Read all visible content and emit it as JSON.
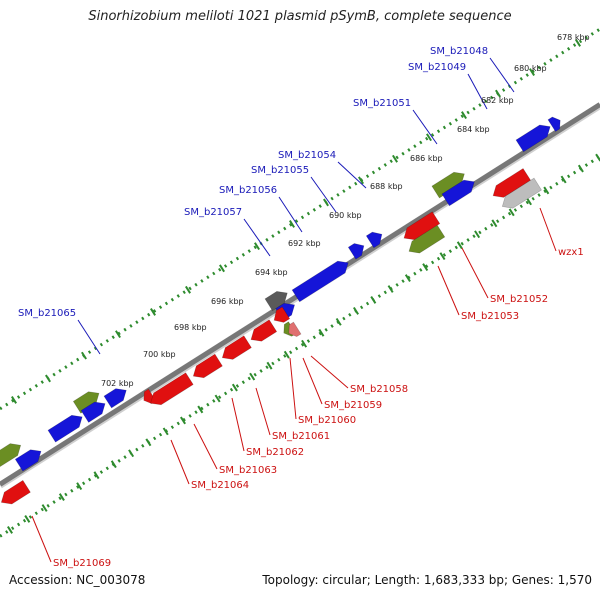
{
  "title": "Sinorhizobium meliloti 1021 plasmid pSymB, complete sequence",
  "footer": {
    "accession": "Accession: NC_003078",
    "topology": "Topology: circular; Length: 1,683,333 bp; Genes: 1,570"
  },
  "colors": {
    "axis": "#777777",
    "forward_gene": "#1515d8",
    "forward_rna": "#6b8e23",
    "reverse_gene": "#e01010",
    "reverse_pseudo": "#bdbdbd",
    "other_gene": "#5a5a5a",
    "scale_dots": "#2e8b2e",
    "label_blue": "#1a1ab8",
    "label_red": "#cc1111"
  },
  "scale_ticks": [
    "678 kbp",
    "680 kbp",
    "682 kbp",
    "684 kbp",
    "686 kbp",
    "688 kbp",
    "690 kbp",
    "692 kbp",
    "694 kbp",
    "696 kbp",
    "698 kbp",
    "700 kbp",
    "702 kbp"
  ],
  "forward_labels": [
    "SM_b21048",
    "SM_b21049",
    "SM_b21051",
    "SM_b21054",
    "SM_b21055",
    "SM_b21056",
    "SM_b21057",
    "SM_b21065"
  ],
  "reverse_labels": [
    "wzx1",
    "SM_b21052",
    "SM_b21053",
    "SM_b21058",
    "SM_b21059",
    "SM_b21060",
    "SM_b21061",
    "SM_b21062",
    "SM_b21063",
    "SM_b21064",
    "SM_b21069"
  ]
}
